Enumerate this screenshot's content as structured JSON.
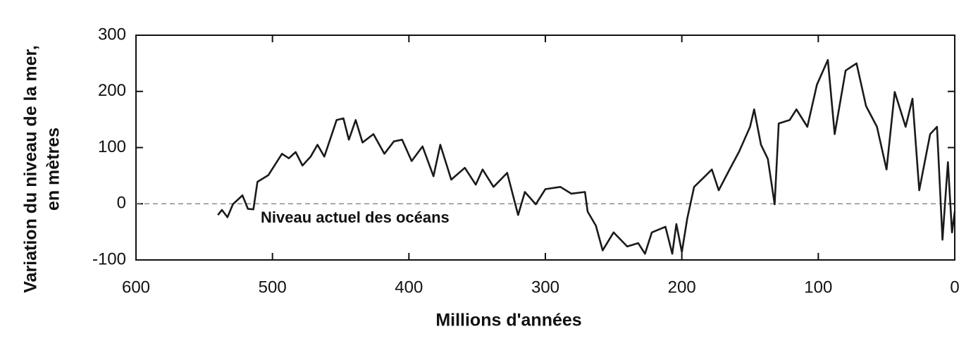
{
  "chart_data": {
    "type": "line",
    "xlabel": "Millions d'années",
    "ylabel": [
      "Variation du niveau de la mer,",
      "en mètres"
    ],
    "annotation": {
      "text": "Niveau actuel des océans",
      "y": 0
    },
    "xlim": [
      600,
      0
    ],
    "xticks": [
      600,
      500,
      400,
      300,
      200,
      100,
      0
    ],
    "ylim": [
      -100,
      300
    ],
    "yticks": [
      -100,
      0,
      100,
      200,
      300
    ],
    "grid": false,
    "series": [
      {
        "color": "#1a1a1a",
        "x": [
          540,
          537,
          533,
          529,
          522,
          518,
          514,
          511,
          503,
          493,
          488,
          483,
          478,
          472,
          467,
          462,
          453,
          448,
          444,
          439,
          434,
          426,
          418,
          411,
          405,
          398,
          390,
          382,
          377,
          369,
          359,
          351,
          346,
          338,
          328,
          320,
          315,
          307,
          300,
          289,
          281,
          271,
          269,
          263,
          258,
          250,
          240,
          232,
          227,
          222,
          212,
          207,
          204,
          200,
          196,
          191,
          183,
          178,
          173,
          165,
          158,
          150,
          147,
          142,
          137,
          132,
          129,
          121,
          116,
          108,
          101,
          93,
          88,
          80,
          72,
          65,
          57,
          50,
          44,
          36,
          31,
          26,
          18,
          13,
          9,
          5,
          2,
          0
        ],
        "values": [
          -20,
          -11,
          -24,
          -1,
          15,
          -9,
          -10,
          39,
          51,
          89,
          81,
          92,
          68,
          84,
          105,
          84,
          149,
          152,
          114,
          149,
          109,
          124,
          89,
          111,
          114,
          76,
          102,
          49,
          105,
          43,
          64,
          34,
          61,
          30,
          55,
          -20,
          21,
          -1,
          26,
          30,
          18,
          21,
          -14,
          -39,
          -83,
          -51,
          -76,
          -70,
          -89,
          -51,
          -41,
          -89,
          -36,
          -86,
          -26,
          30,
          49,
          61,
          24,
          61,
          93,
          137,
          168,
          105,
          80,
          -1,
          143,
          149,
          168,
          137,
          212,
          256,
          124,
          237,
          250,
          174,
          137,
          61,
          199,
          137,
          187,
          24,
          124,
          137,
          -64,
          74,
          -51,
          -14
        ]
      }
    ]
  }
}
